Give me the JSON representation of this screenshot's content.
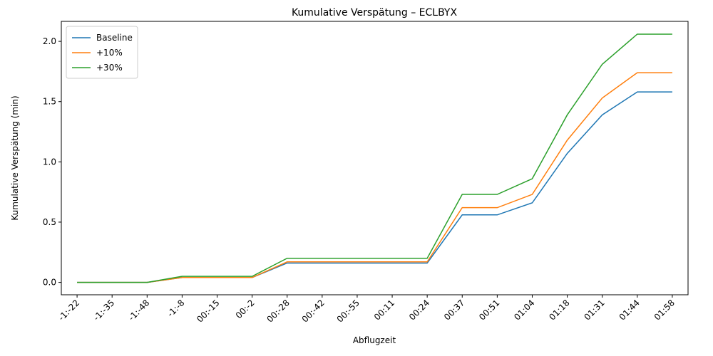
{
  "chart_data": {
    "type": "line",
    "title": "Kumulative Verspätung – ECLBYX",
    "xlabel": "Abflugzeit",
    "ylabel": "Kumulative Verspätung (min)",
    "categories": [
      "-1:-22",
      "-1:-35",
      "-1:-48",
      "-1:-8",
      "00:-15",
      "00:-2",
      "00:-28",
      "00:-42",
      "00:-55",
      "00:11",
      "00:24",
      "00:37",
      "00:51",
      "01:04",
      "01:18",
      "01:31",
      "01:44",
      "01:58"
    ],
    "series": [
      {
        "name": "Baseline",
        "color": "#1f77b4",
        "values": [
          0,
          0,
          0,
          0.04,
          0.04,
          0.04,
          0.16,
          0.16,
          0.16,
          0.16,
          0.16,
          0.56,
          0.56,
          0.66,
          1.07,
          1.39,
          1.58,
          1.58
        ]
      },
      {
        "name": "+10%",
        "color": "#ff7f0e",
        "values": [
          0,
          0,
          0,
          0.04,
          0.04,
          0.04,
          0.17,
          0.17,
          0.17,
          0.17,
          0.17,
          0.62,
          0.62,
          0.73,
          1.18,
          1.53,
          1.74,
          1.74
        ]
      },
      {
        "name": "+30%",
        "color": "#2ca02c",
        "values": [
          0,
          0,
          0,
          0.05,
          0.05,
          0.05,
          0.2,
          0.2,
          0.2,
          0.2,
          0.2,
          0.73,
          0.73,
          0.86,
          1.39,
          1.81,
          2.06,
          2.06
        ]
      }
    ],
    "ylim": [
      -0.103,
      2.166
    ],
    "yticks": [
      {
        "value": 0,
        "label": "0.0"
      },
      {
        "value": 0.5,
        "label": "0.5"
      },
      {
        "value": 1,
        "label": "1.0"
      },
      {
        "value": 1.5,
        "label": "1.5"
      },
      {
        "value": 2,
        "label": "2.0"
      }
    ],
    "legend": "upper left",
    "grid": false
  }
}
